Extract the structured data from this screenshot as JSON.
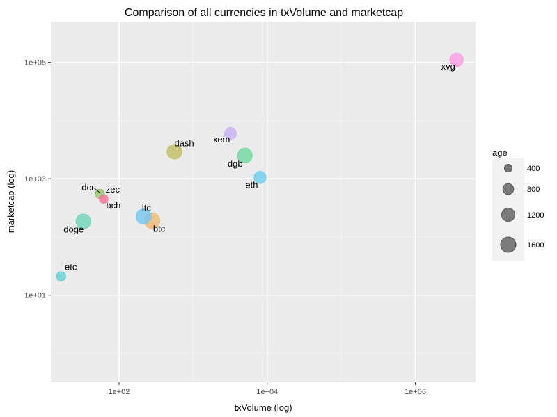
{
  "chart_data": {
    "type": "scatter",
    "title": "Comparison of all currencies in txVolume  and  marketcap",
    "xlabel": "txVolume (log)",
    "ylabel": "marketcap (log)",
    "x_scale": "log10",
    "y_scale": "log10",
    "xlim": [
      12,
      6500000
    ],
    "ylim": [
      0.32,
      500000
    ],
    "x_ticks": [
      100,
      10000,
      1000000
    ],
    "x_tick_labels": [
      "1e+02",
      "1e+04",
      "1e+06"
    ],
    "y_ticks": [
      10,
      1000,
      100000
    ],
    "y_tick_labels": [
      "1e+01",
      "1e+03",
      "1e+05"
    ],
    "grid": true,
    "legend_position": "right",
    "legend": {
      "title": "age",
      "entries": [
        {
          "label": "400",
          "value": 400
        },
        {
          "label": "800",
          "value": 800
        },
        {
          "label": "1200",
          "value": 1200
        },
        {
          "label": "1600",
          "value": 1600
        }
      ]
    },
    "points": [
      {
        "label": "xvg",
        "x": 3600000,
        "y": 110000,
        "age": 1250,
        "color": "#ff99e6"
      },
      {
        "label": "xem",
        "x": 3200,
        "y": 6000,
        "age": 950,
        "color": "#c5b0f5"
      },
      {
        "label": "dash",
        "x": 560,
        "y": 2900,
        "age": 1500,
        "color": "#bfbd5e"
      },
      {
        "label": "dgb",
        "x": 5000,
        "y": 2500,
        "age": 1500,
        "color": "#6cd89c"
      },
      {
        "label": "eth",
        "x": 8000,
        "y": 1050,
        "age": 1000,
        "color": "#66cdf0"
      },
      {
        "label": "dcr",
        "x": 55,
        "y": 550,
        "age": 600,
        "color": "#93c46a"
      },
      {
        "label": "zec",
        "x": 62,
        "y": 450,
        "age": 500,
        "color": "#f66d8e"
      },
      {
        "label": "bch",
        "x": 62,
        "y": 450,
        "age": 0,
        "color": "#f66d8e"
      },
      {
        "label": "ltc",
        "x": 215,
        "y": 225,
        "age": 1550,
        "color": "#71c5f5"
      },
      {
        "label": "btc",
        "x": 280,
        "y": 190,
        "age": 1650,
        "color": "#eeb86a"
      },
      {
        "label": "doge",
        "x": 33,
        "y": 185,
        "age": 1500,
        "color": "#69d4b7"
      },
      {
        "label": "etc",
        "x": 16.5,
        "y": 21,
        "age": 600,
        "color": "#5fcfcf"
      }
    ]
  }
}
